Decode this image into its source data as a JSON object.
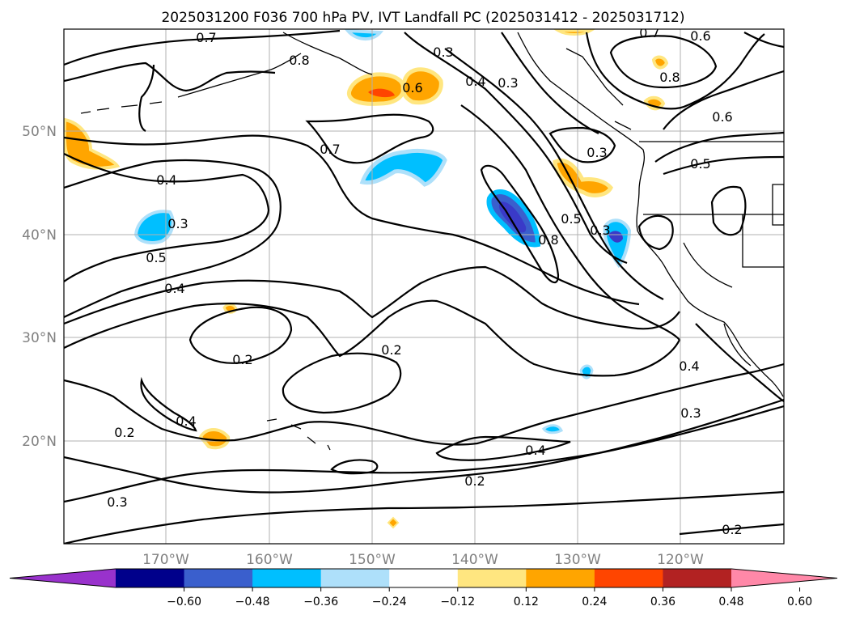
{
  "title": "2025031200 F036 700 hPa PV, IVT Landfall PC (2025031412 - 2025031712)",
  "map": {
    "region": "North Pacific",
    "lat_labels": [
      "50°N",
      "40°N",
      "30°N",
      "20°N"
    ],
    "lon_labels": [
      "170°W",
      "160°W",
      "150°W",
      "140°W",
      "130°W",
      "120°W"
    ],
    "contour_labels": [
      "0.7",
      "0.8",
      "0.3",
      "0.6",
      "0.4",
      "0.3",
      "0.7",
      "0.6",
      "0.8",
      "0.6",
      "0.5",
      "0.7",
      "0.4",
      "0.3",
      "0.3",
      "0.5",
      "0.3",
      "0.8",
      "0.4",
      "0.5",
      "0.2",
      "0.2",
      "0.4",
      "0.4",
      "0.2",
      "0.4",
      "0.3",
      "0.2",
      "0.3",
      "0.2"
    ],
    "colors": {
      "neg_dark": "#3a3ac8",
      "neg_mid": "#00bfff",
      "neg_light": "#aee0fa",
      "pos_light": "#ffe680",
      "pos_mid": "#ffa500",
      "pos_strong": "#ff4500"
    }
  },
  "colorbar": {
    "ticks": [
      "−0.60",
      "−0.48",
      "−0.36",
      "−0.24",
      "−0.12",
      "0.12",
      "0.24",
      "0.36",
      "0.48",
      "0.60"
    ],
    "colors": [
      "#9932cc",
      "#00008b",
      "#3a5fcd",
      "#00bfff",
      "#aee0fa",
      "#ffffff",
      "#ffe680",
      "#ffa500",
      "#ff4500",
      "#b22222",
      "#ff88a8"
    ]
  }
}
